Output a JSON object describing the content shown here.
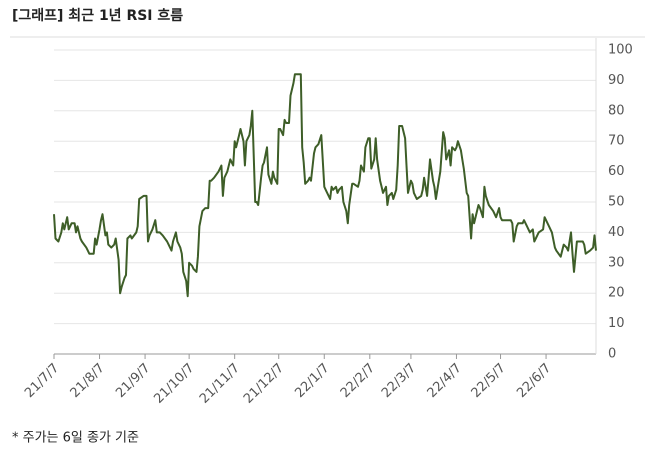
{
  "chart_data": {
    "type": "line",
    "title": "[그래프] 최근 1년 RSI 흐름",
    "note": "* 주가는 6일 종가 기준",
    "series": [
      {
        "color": "#3e5e28",
        "x": [
          0,
          1,
          3,
          5,
          6,
          7,
          9,
          10,
          12,
          14,
          15,
          16,
          18,
          19,
          22,
          23,
          24,
          27,
          28,
          29,
          31,
          32,
          33,
          35,
          36,
          37,
          39,
          41,
          42,
          44,
          45,
          46,
          48,
          49,
          50,
          52,
          53,
          56,
          57,
          58,
          61,
          63,
          64,
          65,
          67,
          69,
          70,
          72,
          74,
          77,
          78,
          80,
          81,
          83,
          84,
          86,
          87,
          88,
          90,
          91,
          92,
          94,
          95,
          97,
          98,
          99,
          101,
          103,
          105,
          106,
          107,
          109,
          112,
          114,
          115,
          116,
          118,
          120,
          122,
          123,
          124,
          126,
          127,
          129,
          130,
          131,
          133,
          134,
          135,
          137,
          138,
          139,
          141,
          142,
          143,
          145,
          146,
          148,
          149,
          150,
          152,
          153,
          154,
          156,
          157,
          158,
          160,
          161,
          163,
          164,
          166,
          168,
          169,
          170,
          171,
          173,
          174,
          175,
          177,
          178,
          180,
          182,
          184,
          185,
          186,
          188,
          189,
          190,
          192,
          193,
          194,
          196,
          197,
          199,
          200,
          201,
          203,
          204,
          207,
          208,
          209,
          211,
          212,
          214,
          215,
          216,
          218,
          219,
          220,
          222,
          223,
          224,
          226,
          227,
          228,
          230,
          231,
          233,
          234,
          235,
          237,
          239,
          240,
          241,
          243,
          244,
          245,
          247,
          250,
          251,
          252,
          254,
          255,
          256,
          258,
          259,
          260,
          262,
          263,
          265,
          266,
          267,
          269,
          270,
          271,
          273,
          274,
          275,
          277,
          278,
          279,
          281,
          282,
          284,
          285,
          286,
          288,
          289,
          290,
          292,
          293,
          294,
          296,
          299,
          301,
          303,
          304,
          305,
          311,
          312,
          313,
          315,
          316,
          319,
          320,
          322,
          324,
          326,
          327,
          328,
          330,
          333,
          334,
          337,
          339,
          341,
          342,
          345,
          347,
          349,
          350,
          352,
          353,
          354,
          356,
          360,
          361,
          362,
          365,
          367,
          368,
          369
        ],
        "values": [
          46,
          38,
          37,
          40,
          43,
          41,
          45,
          41,
          43,
          43,
          40,
          42,
          38,
          37,
          35,
          34,
          33,
          33,
          38,
          36,
          41,
          44,
          46,
          39,
          40,
          36,
          35,
          36,
          38,
          31,
          20,
          22,
          25,
          26,
          38,
          39,
          38,
          40,
          42,
          51,
          52,
          52,
          37,
          39,
          41,
          44,
          40,
          40,
          39,
          37,
          36,
          34,
          37,
          40,
          37,
          35,
          33,
          27,
          24,
          19,
          30,
          29,
          28,
          27,
          32,
          42,
          47,
          48,
          48,
          57,
          57,
          58,
          60,
          62,
          52,
          58,
          60,
          64,
          62,
          70,
          68,
          72,
          74,
          70,
          62,
          70,
          72,
          75,
          80,
          50,
          50,
          49,
          58,
          62,
          63,
          68,
          59,
          56,
          60,
          58,
          56,
          74,
          74,
          72,
          77,
          76,
          76,
          85,
          89,
          92,
          92,
          92,
          68,
          63,
          56,
          57,
          58,
          57,
          66,
          68,
          69,
          72,
          55,
          54,
          53,
          51,
          55,
          54,
          55,
          53,
          54,
          55,
          50,
          47,
          43,
          49,
          56,
          56,
          55,
          57,
          62,
          60,
          68,
          71,
          71,
          61,
          64,
          71,
          64,
          57,
          55,
          53,
          55,
          49,
          52,
          53,
          51,
          54,
          62,
          75,
          75,
          71,
          62,
          53,
          57,
          56,
          53,
          51,
          52,
          54,
          58,
          52,
          58,
          64,
          57,
          55,
          51,
          57,
          60,
          73,
          71,
          64,
          67,
          62,
          68,
          67,
          68,
          70,
          67,
          64,
          61,
          53,
          52,
          38,
          46,
          43,
          47,
          49,
          48,
          45,
          55,
          52,
          49,
          47,
          45,
          48,
          45,
          44,
          44,
          43,
          37,
          42,
          43,
          43,
          44,
          42,
          40,
          41,
          37,
          38,
          40,
          41,
          45,
          42,
          40,
          35,
          34,
          32,
          36,
          35,
          34,
          40,
          33,
          27,
          37,
          37,
          36,
          33,
          34,
          35,
          39,
          34
        ]
      }
    ],
    "xlim": [
      0,
      369
    ],
    "xticks": [
      {
        "value": 0,
        "label": "21/7/7"
      },
      {
        "value": 31,
        "label": "21/8/7"
      },
      {
        "value": 62,
        "label": "21/9/7"
      },
      {
        "value": 92,
        "label": "21/10/7"
      },
      {
        "value": 123,
        "label": "21/11/7"
      },
      {
        "value": 153,
        "label": "21/12/7"
      },
      {
        "value": 184,
        "label": "22/1/7"
      },
      {
        "value": 215,
        "label": "22/2/7"
      },
      {
        "value": 243,
        "label": "22/3/7"
      },
      {
        "value": 274,
        "label": "22/4/7"
      },
      {
        "value": 304,
        "label": "22/5/7"
      },
      {
        "value": 335,
        "label": "22/6/7"
      }
    ],
    "ylim": [
      0,
      100
    ],
    "yticks": [
      0,
      10,
      20,
      30,
      40,
      50,
      60,
      70,
      80,
      90,
      100
    ],
    "grid": true
  }
}
